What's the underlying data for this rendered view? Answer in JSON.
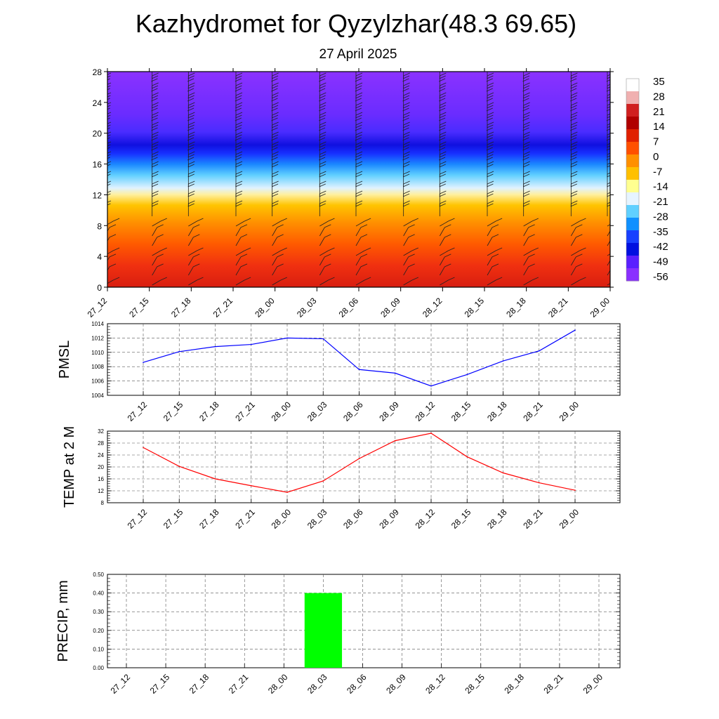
{
  "page": {
    "title": "Kazhydromet for Qyzylzhar(48.3 69.65)",
    "subtitle": "27 April 2025"
  },
  "chart_data": [
    {
      "type": "heatmap",
      "name": "temperature-height cross-section with wind barbs",
      "x_ticks": [
        "27_12",
        "27_15",
        "27_18",
        "27_21",
        "28_00",
        "28_03",
        "28_06",
        "28_09",
        "28_12",
        "28_15",
        "28_18",
        "28_21",
        "29_00"
      ],
      "y_ticks": [
        0,
        4,
        8,
        12,
        16,
        20,
        24,
        28
      ],
      "ylim": [
        0,
        28
      ],
      "colorbar_labels": [
        "35",
        "28",
        "21",
        "14",
        "7",
        "0",
        "-7",
        "-14",
        "-21",
        "-28",
        "-35",
        "-42",
        "-49",
        "-56"
      ],
      "colorbar_colors": [
        "#ffffff",
        "#f0b0b0",
        "#d02020",
        "#b00000",
        "#e02000",
        "#ff5000",
        "#ff9000",
        "#ffc000",
        "#ffff90",
        "#e6f4ff",
        "#60d0ff",
        "#1090ff",
        "#1840ff",
        "#0010e0",
        "#5a20ff",
        "#8a30ff"
      ]
    },
    {
      "type": "line",
      "ylabel": "PMSL",
      "ylim": [
        1004,
        1014
      ],
      "y_ticks": [
        "1004",
        "1006",
        "1008",
        "1010",
        "1012",
        "1014"
      ],
      "x": [
        "27_12",
        "27_15",
        "27_18",
        "27_21",
        "28_00",
        "28_03",
        "28_06",
        "28_09",
        "28_12",
        "28_15",
        "28_18",
        "28_21",
        "29_00"
      ],
      "values": [
        1008.6,
        1010.1,
        1010.8,
        1011.1,
        1012.0,
        1011.9,
        1007.6,
        1007.1,
        1005.3,
        1006.9,
        1008.8,
        1010.2,
        1013.1
      ],
      "color": "#0000ff"
    },
    {
      "type": "line",
      "ylabel": "TEMP at 2 M",
      "ylim": [
        8,
        32
      ],
      "y_ticks": [
        "8",
        "12",
        "16",
        "20",
        "24",
        "28",
        "32"
      ],
      "x": [
        "27_12",
        "27_15",
        "27_18",
        "27_21",
        "28_00",
        "28_03",
        "28_06",
        "28_09",
        "28_12",
        "28_15",
        "28_18",
        "28_21",
        "29_00"
      ],
      "values": [
        26.5,
        20.2,
        16.0,
        13.7,
        11.5,
        15.3,
        22.8,
        28.8,
        31.3,
        23.4,
        18.0,
        14.7,
        12.2
      ],
      "color": "#ff0000"
    },
    {
      "type": "bar",
      "ylabel": "PRECIP, mm",
      "ylim": [
        0,
        0.5
      ],
      "y_ticks": [
        "0.00",
        "0.10",
        "0.20",
        "0.30",
        "0.40",
        "0.50"
      ],
      "x": [
        "27_12",
        "27_15",
        "27_18",
        "27_21",
        "28_00",
        "28_03",
        "28_06",
        "28_09",
        "28_12",
        "28_15",
        "28_18",
        "28_21",
        "29_00"
      ],
      "values": [
        0,
        0,
        0,
        0,
        0,
        0.4,
        0,
        0,
        0,
        0,
        0,
        0,
        0
      ],
      "color": "#00ff00"
    }
  ]
}
